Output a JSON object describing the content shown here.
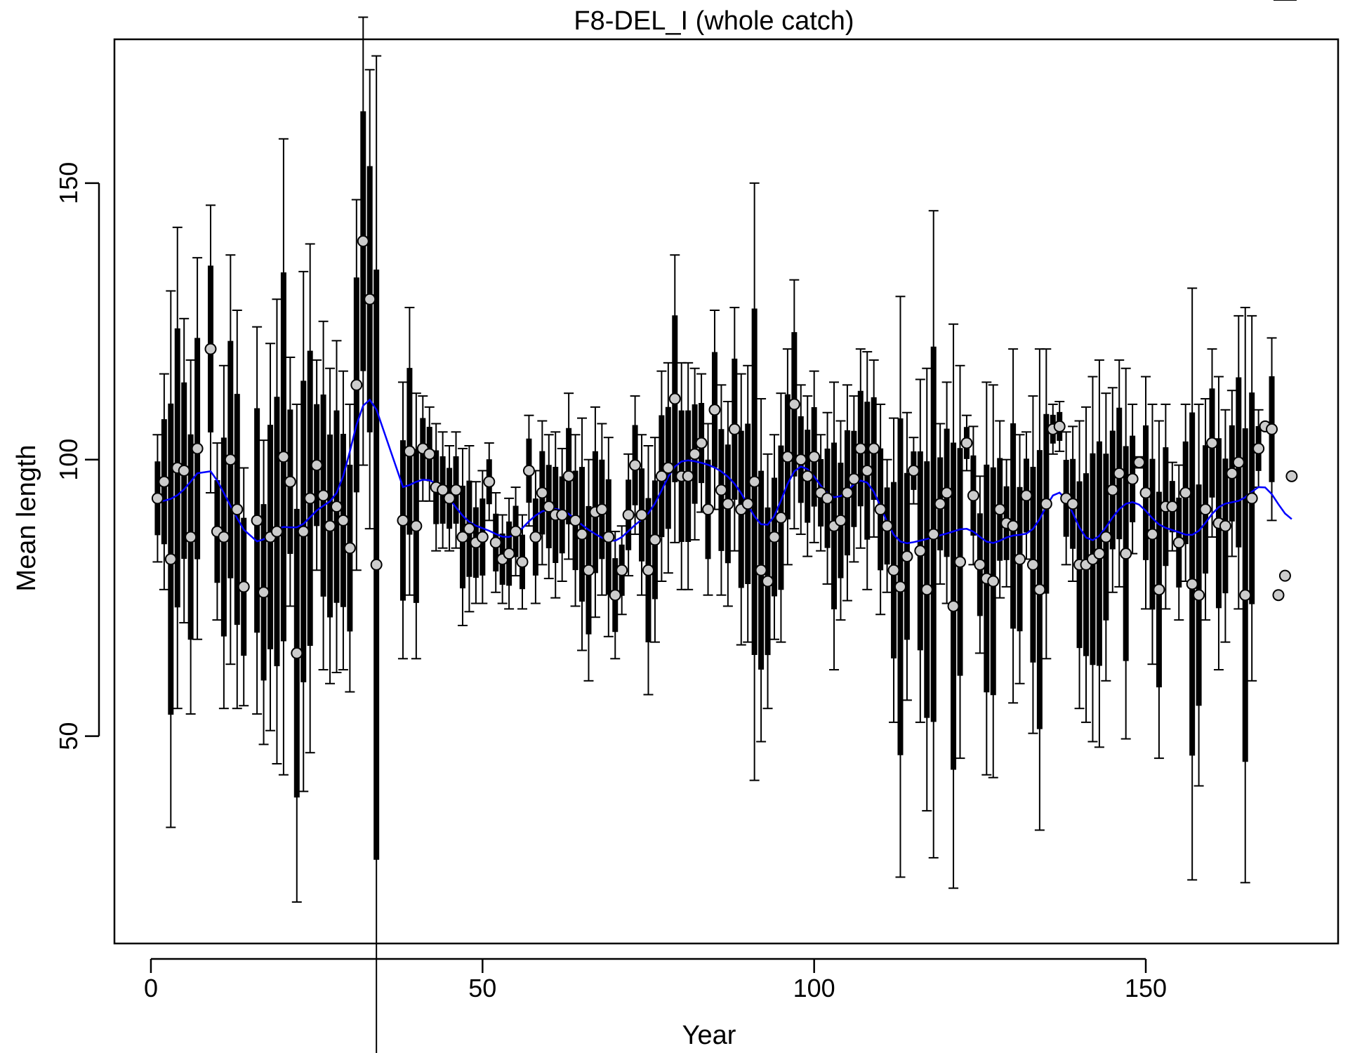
{
  "chart_data": {
    "type": "scatter",
    "title": "F8-DEL_I (whole catch)",
    "xlabel": "Year",
    "ylabel": "Mean length",
    "xlim": [
      -5.5,
      179
    ],
    "ylim": [
      12.5,
      176
    ],
    "xticks": [
      0,
      50,
      100,
      150
    ],
    "yticks": [
      50,
      100,
      150
    ],
    "grid": false,
    "legend": "none",
    "colors": {
      "points": "#cccccc",
      "error_bars": "#000000",
      "fit_line": "#0000ff"
    },
    "x": [
      1,
      2,
      3,
      4,
      5,
      6,
      7,
      9,
      10,
      11,
      12,
      13,
      14,
      16,
      17,
      18,
      19,
      20,
      21,
      22,
      23,
      24,
      25,
      26,
      27,
      28,
      29,
      30,
      31,
      32,
      33,
      34,
      38,
      39,
      40,
      41,
      42,
      43,
      44,
      45,
      46,
      47,
      48,
      49,
      50,
      51,
      52,
      53,
      54,
      55,
      56,
      57,
      58,
      59,
      60,
      61,
      62,
      63,
      64,
      65,
      66,
      67,
      68,
      69,
      70,
      71,
      72,
      73,
      74,
      75,
      76,
      77,
      78,
      79,
      80,
      81,
      82,
      83,
      84,
      85,
      86,
      87,
      88,
      89,
      90,
      91,
      92,
      93,
      94,
      95,
      96,
      97,
      98,
      99,
      100,
      101,
      102,
      103,
      104,
      105,
      106,
      107,
      108,
      109,
      110,
      111,
      112,
      113,
      114,
      115,
      116,
      117,
      118,
      119,
      120,
      121,
      122,
      123,
      124,
      125,
      126,
      127,
      128,
      129,
      130,
      131,
      132,
      133,
      134,
      135,
      136,
      137,
      138,
      139,
      140,
      141,
      142,
      143,
      144,
      145,
      146,
      147,
      148,
      149,
      150,
      151,
      152,
      153,
      154,
      155,
      156,
      157,
      158,
      159,
      160,
      161,
      162,
      163,
      164,
      165,
      166,
      167,
      168,
      169,
      170,
      171,
      172
    ],
    "mean_length": [
      93,
      96,
      82,
      98.5,
      98,
      86,
      102,
      120,
      87,
      86,
      100,
      91,
      77,
      89,
      76,
      86,
      87,
      100.5,
      96,
      65,
      87,
      93,
      99,
      93.5,
      88,
      91.5,
      89,
      84,
      113.5,
      139.5,
      129,
      81,
      89,
      101.5,
      88,
      102,
      101,
      95,
      94.5,
      93,
      94.5,
      86,
      87.5,
      85,
      86,
      96,
      85,
      82,
      83,
      87,
      81.5,
      98,
      86,
      94,
      91.5,
      90,
      90,
      97,
      89,
      86.5,
      80,
      90.5,
      91,
      86,
      75.5,
      80,
      90,
      99,
      90,
      80,
      85.5,
      97,
      98.5,
      111,
      97,
      97,
      101,
      103,
      91,
      109,
      94.5,
      92,
      105.5,
      91,
      92,
      96,
      80,
      78,
      86,
      89.5,
      100.5,
      110,
      100,
      97,
      100.5,
      94,
      93,
      88,
      89,
      94,
      96.5,
      102,
      98,
      102,
      91,
      88,
      80,
      77,
      82.5,
      98,
      83.5,
      76.5,
      86.5,
      92,
      94,
      73.5,
      81.5,
      103,
      93.5,
      81,
      78.5,
      78,
      91,
      88.5,
      88,
      82,
      93.5,
      81,
      76.5,
      92,
      105.5,
      106,
      93,
      92,
      81,
      81,
      82,
      83,
      86,
      94.5,
      97.5,
      83,
      96.5,
      99.5,
      94,
      86.5,
      76.5,
      91.5,
      91.5,
      85,
      94,
      77.5,
      75.5,
      91,
      103,
      88.5,
      88,
      97.5,
      99.5,
      75.5,
      93,
      102,
      106,
      105.5,
      75.5,
      79,
      97
    ],
    "upper_bar": [
      104.5,
      115.5,
      130.5,
      142,
      125.5,
      118,
      136.5,
      146,
      103,
      117,
      137,
      127,
      98.5,
      124,
      103.5,
      121,
      129,
      158,
      118.5,
      110,
      134,
      139,
      118,
      125,
      116.5,
      121.5,
      116,
      110,
      147,
      180,
      170.5,
      173,
      114,
      127.5,
      112,
      111.5,
      109.5,
      106.5,
      105,
      102.5,
      105,
      102,
      102.5,
      96,
      98,
      103,
      94,
      90,
      93,
      95,
      90,
      108,
      98,
      107,
      104.5,
      105,
      102,
      112,
      104.5,
      107.5,
      100,
      109.5,
      106.5,
      104,
      87,
      88,
      101,
      111.5,
      104.5,
      102.5,
      104,
      116,
      117.5,
      137,
      117.5,
      117.5,
      116.5,
      115.5,
      106.5,
      127,
      113.5,
      110.5,
      127.5,
      115.5,
      117,
      150,
      111,
      101,
      104.5,
      112,
      120,
      132.5,
      113.5,
      111.5,
      116,
      104.5,
      108.5,
      114,
      107,
      113.5,
      111.5,
      120,
      119.5,
      118,
      110,
      100,
      107.5,
      129.5,
      108.5,
      104,
      114.5,
      116.5,
      145,
      106.5,
      114,
      124.5,
      117,
      108,
      106,
      97,
      114,
      113.5,
      107,
      100,
      120,
      104.5,
      105,
      111.5,
      120,
      120,
      110,
      110.5,
      105,
      106,
      107,
      109.5,
      115,
      118,
      112,
      113,
      118,
      116.5,
      110,
      98.5,
      115,
      110,
      107,
      110,
      99.5,
      99,
      110,
      131,
      110,
      111,
      120,
      115,
      109,
      112.5,
      126,
      127.5,
      126,
      109,
      106.5,
      122
    ]
  }
}
